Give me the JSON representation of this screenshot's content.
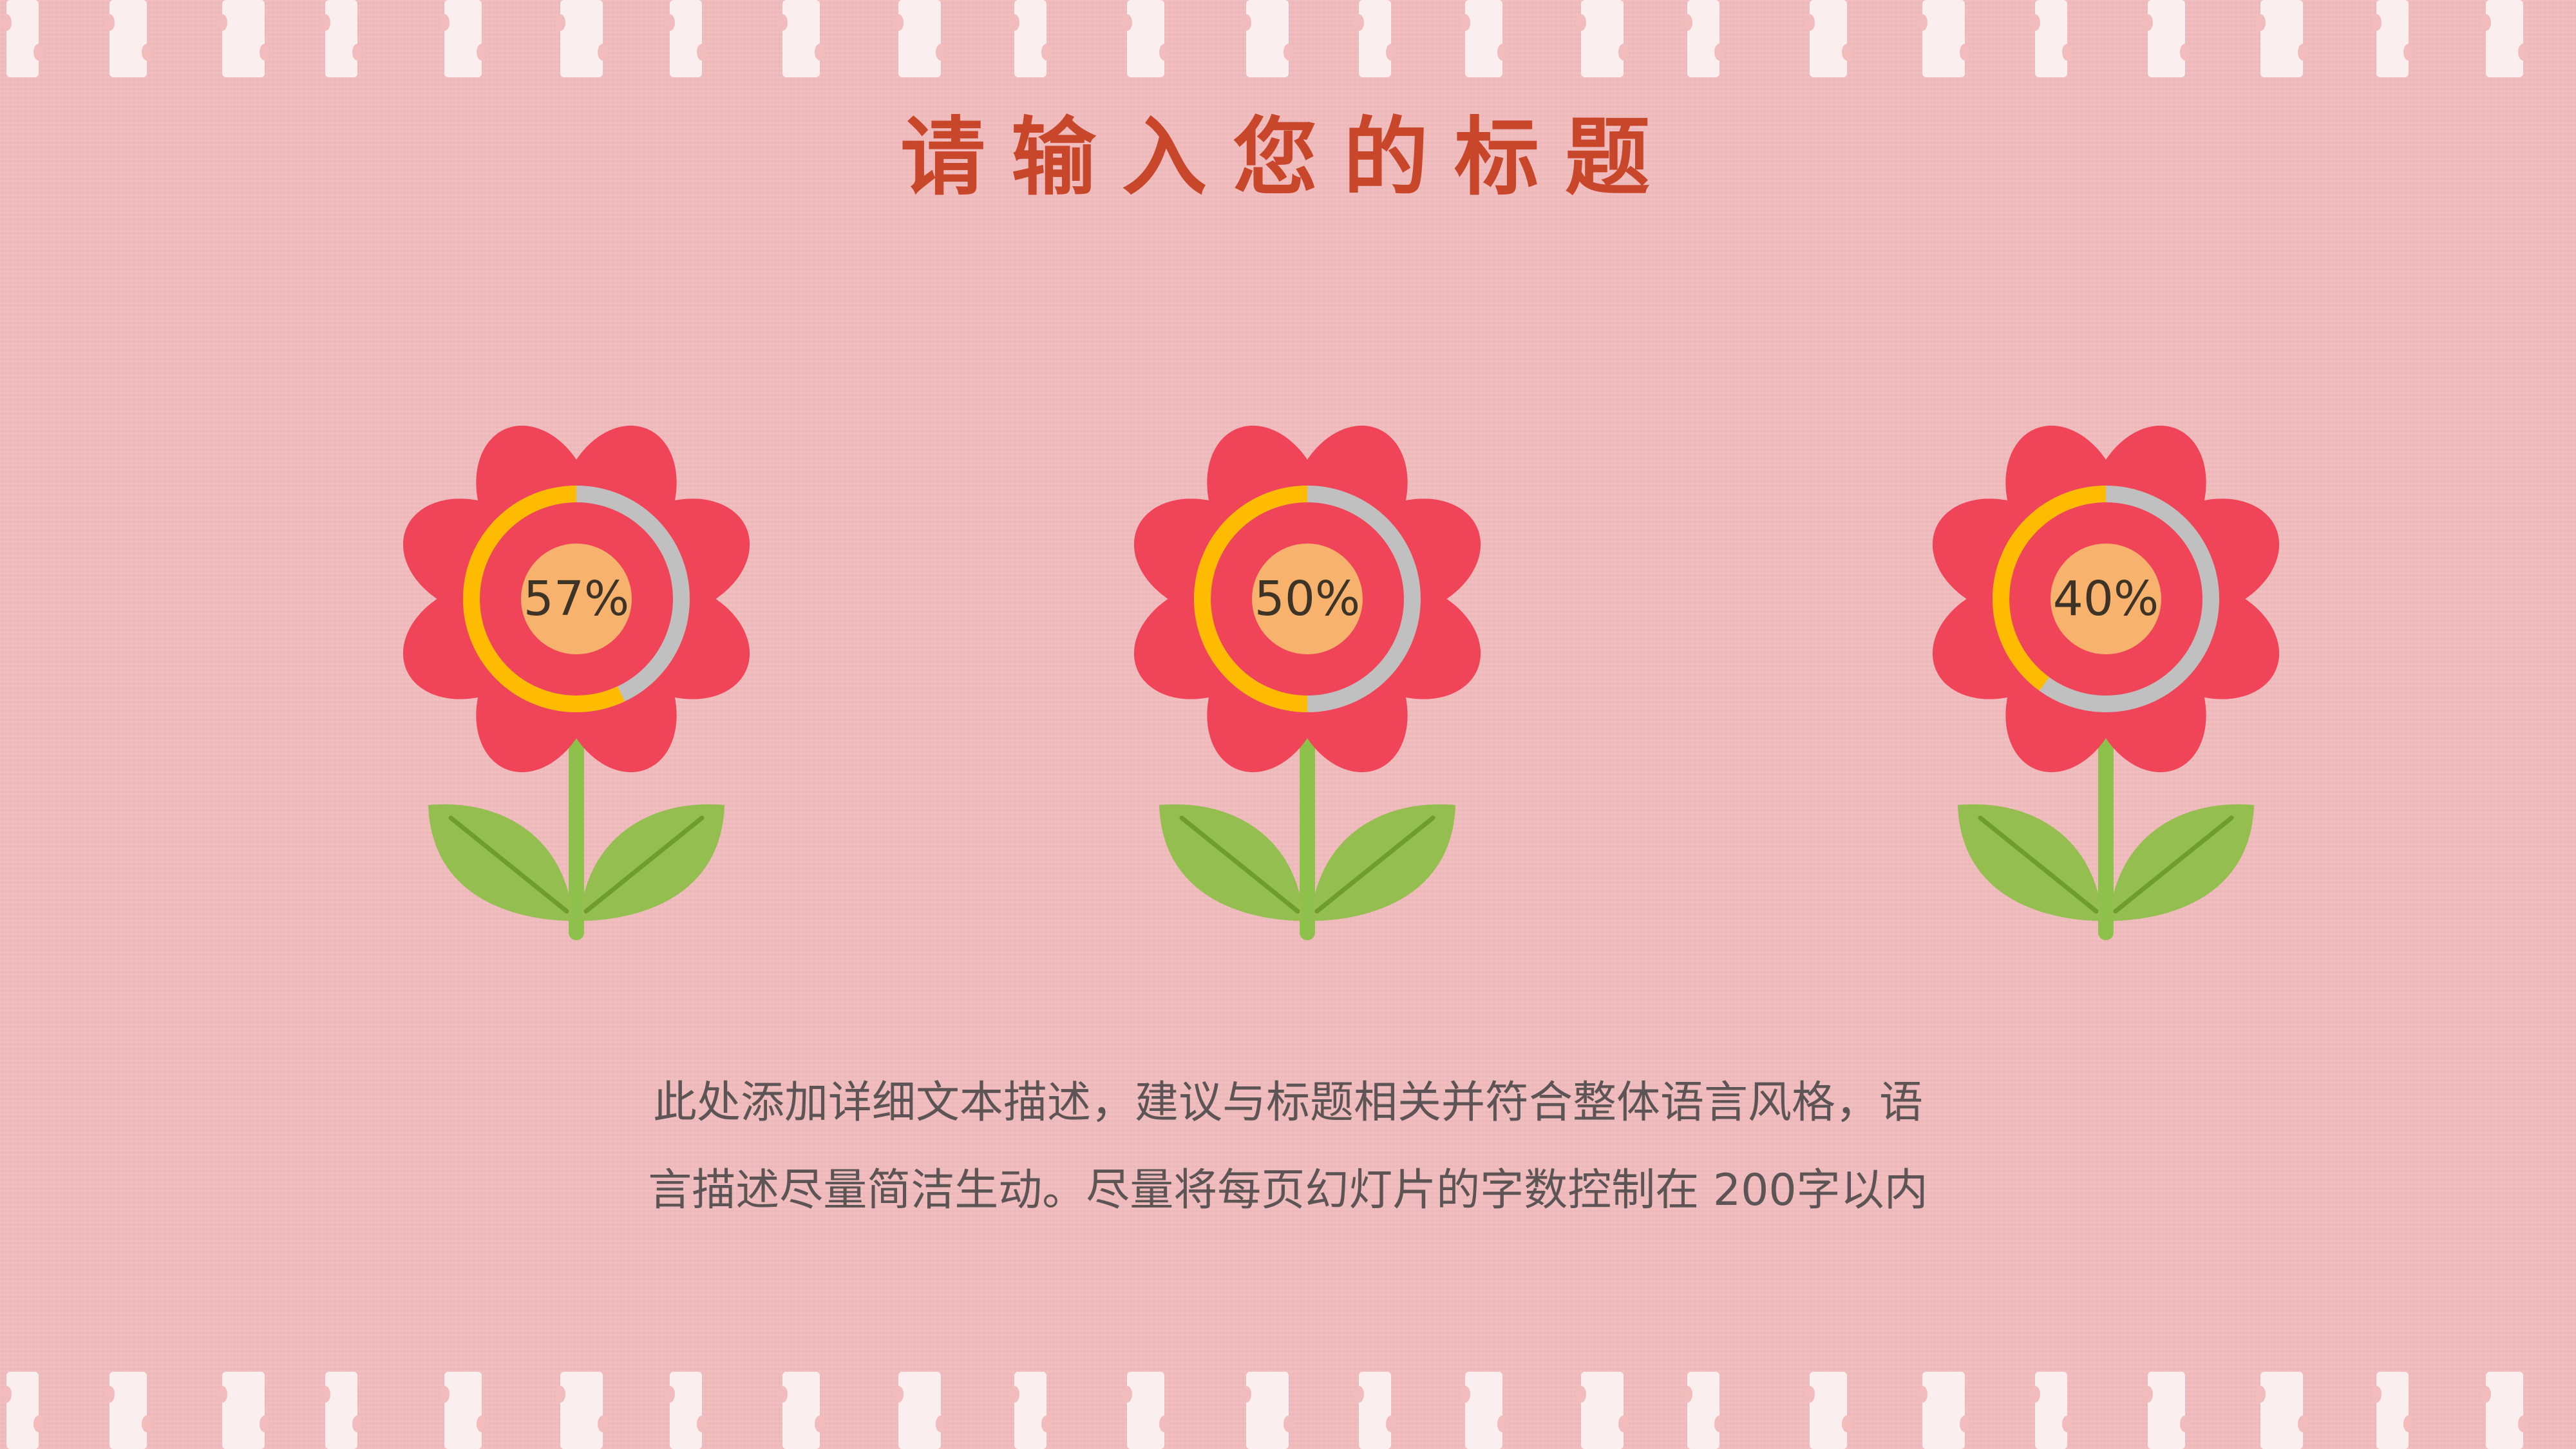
{
  "slide": {
    "title": "请输入您的标题",
    "description_line1": "此处添加详细文本描述，建议与标题相关并符合整体语言风格，语",
    "description_line2": "言描述尽量简洁生动。尽量将每页幻灯片的字数控制在  200字以内"
  },
  "flowers": [
    {
      "label": "57%",
      "value": 0.57
    },
    {
      "label": "50%",
      "value": 0.5
    },
    {
      "label": "40%",
      "value": 0.4
    }
  ],
  "colors": {
    "background": "#f2bcbd",
    "stripe": "#fbeeee",
    "title": "#c8472b",
    "petal": "#f04458",
    "ring_fill": "#ffbb00",
    "ring_track": "#c0c0c0",
    "center": "#f7b36d",
    "stem": "#8ec14b",
    "leaf": "#94be4f",
    "leaf_vein": "#6f9c2d",
    "text": "#5d5455"
  }
}
